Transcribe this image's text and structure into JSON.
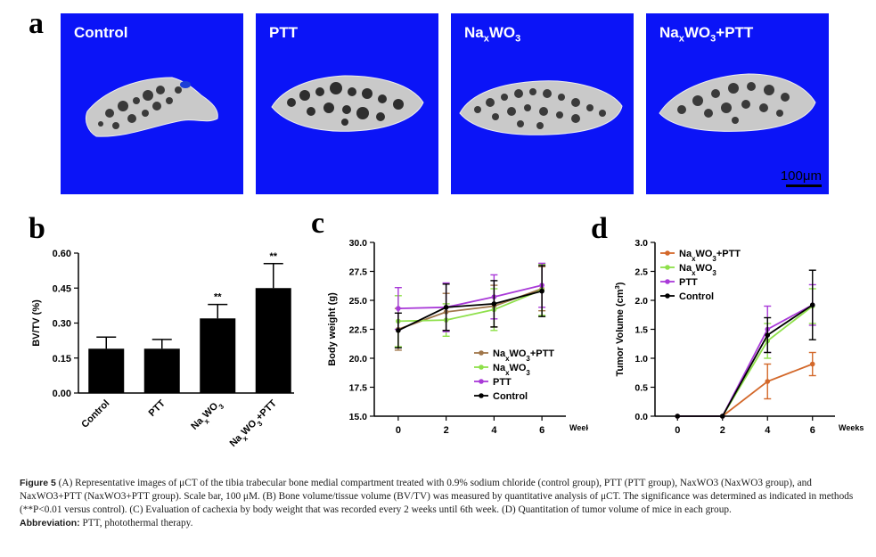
{
  "panel_labels": {
    "a": "a",
    "b": "b",
    "c": "c",
    "d": "d"
  },
  "micro_ct": {
    "images": [
      {
        "label": "Control"
      },
      {
        "label": "PTT"
      },
      {
        "label_main": "Na",
        "label_sub1": "x",
        "label_mid": "WO",
        "label_sub2": "3",
        "label_tail": ""
      },
      {
        "label_main": "Na",
        "label_sub1": "x",
        "label_mid": "WO",
        "label_sub2": "3",
        "label_tail": "+PTT"
      }
    ],
    "scale_bar": "100μm",
    "colors": {
      "background": "#0b14f7",
      "bone": "#c9c9c9"
    }
  },
  "chart_data": [
    {
      "type": "bar",
      "ylabel": "BV/TV (%)",
      "categories": [
        "Control",
        "PTT",
        "NaxWO3",
        "NaxWO3+PTT"
      ],
      "values": [
        0.19,
        0.19,
        0.32,
        0.45
      ],
      "errors": [
        0.05,
        0.04,
        0.06,
        0.105
      ],
      "significance": [
        "",
        "",
        "**",
        "**"
      ],
      "yticks": [
        "0.00",
        "0.15",
        "0.30",
        "0.45",
        "0.60"
      ],
      "ylim": [
        0,
        0.6
      ]
    },
    {
      "type": "line",
      "ylabel": "Body weight (g)",
      "xlabel": "Weeks",
      "x": [
        0,
        2,
        4,
        6
      ],
      "xticks": [
        "0",
        "2",
        "4",
        "6"
      ],
      "yticks": [
        "15.0",
        "17.5",
        "20.0",
        "22.5",
        "25.0",
        "27.5",
        "30.0"
      ],
      "ylim": [
        15,
        30
      ],
      "legend": [
        "NaxWO3+PTT",
        "NaxWO3",
        "PTT",
        "Control"
      ],
      "series": [
        {
          "name": "NaxWO3+PTT",
          "color": "#a0764a",
          "values": [
            22.5,
            24.0,
            24.5,
            26.0
          ],
          "errors": [
            1.8,
            1.6,
            1.8,
            1.9
          ]
        },
        {
          "name": "NaxWO3",
          "color": "#8ee04a",
          "values": [
            23.2,
            23.3,
            24.2,
            25.9
          ],
          "errors": [
            2.2,
            1.4,
            1.8,
            2.2
          ]
        },
        {
          "name": "PTT",
          "color": "#a93ad8",
          "values": [
            24.3,
            24.4,
            25.3,
            26.3
          ],
          "errors": [
            1.8,
            2.1,
            1.9,
            1.9
          ]
        },
        {
          "name": "Control",
          "color": "#000000",
          "values": [
            22.4,
            24.4,
            24.7,
            25.8
          ],
          "errors": [
            1.5,
            2.0,
            2.0,
            2.2
          ]
        }
      ]
    },
    {
      "type": "line",
      "ylabel": "Tumor Volume (cm3)",
      "xlabel": "Weeks",
      "x": [
        0,
        2,
        4,
        6
      ],
      "xticks": [
        "0",
        "2",
        "4",
        "6"
      ],
      "yticks": [
        "0.0",
        "0.5",
        "1.0",
        "1.5",
        "2.0",
        "2.5",
        "3.0"
      ],
      "ylim": [
        0,
        3
      ],
      "legend": [
        "NaxWO3+PTT",
        "NaxWO3",
        "PTT",
        "Control"
      ],
      "series": [
        {
          "name": "NaxWO3+PTT",
          "color": "#d3682a",
          "values": [
            0,
            0,
            0.6,
            0.9
          ],
          "errors": [
            0,
            0,
            0.3,
            0.2
          ]
        },
        {
          "name": "NaxWO3",
          "color": "#8ee04a",
          "values": [
            0,
            0,
            1.3,
            1.9
          ],
          "errors": [
            0,
            0,
            0.3,
            0.3
          ]
        },
        {
          "name": "PTT",
          "color": "#a93ad8",
          "values": [
            0,
            0,
            1.5,
            1.92
          ],
          "errors": [
            0,
            0,
            0.4,
            0.35
          ]
        },
        {
          "name": "Control",
          "color": "#000000",
          "values": [
            0,
            0,
            1.4,
            1.92
          ],
          "errors": [
            0,
            0,
            0.3,
            0.6
          ]
        }
      ]
    }
  ],
  "caption": {
    "fig_label": "Figure 5",
    "text1": " (A) Representative images of μCT of the tibia trabecular bone medial compartment treated with 0.9% sodium chloride (control group), PTT (PTT group), NaxWO3 (NaxWO3 group), and NaxWO3+PTT (NaxWO3+PTT group). Scale bar, 100 μM. (B) Bone volume/tissue volume (BV/TV) was measured by quantitative analysis of μCT. The significance was determined as indicated in methods (**P<0.01 versus control). (C) Evaluation of cachexia by body weight that was recorded every 2 weeks until 6th week. (D) Quantitation of tumor volume of mice in each group.",
    "abbr_label": "Abbreviation:",
    "abbr_text": " PTT, photothermal therapy."
  }
}
